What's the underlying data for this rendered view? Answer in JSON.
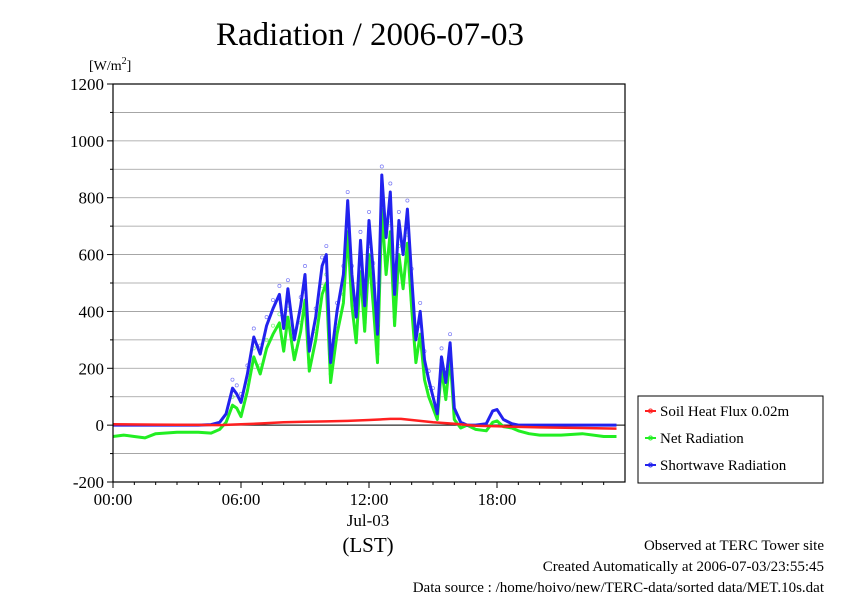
{
  "chart_data": {
    "type": "line",
    "title": "Radiation / 2006-07-03",
    "y_unit_prefix": "[W/m",
    "y_unit_sup": "2",
    "y_unit_suffix": "]",
    "ylim": [
      -200,
      1200
    ],
    "yticks": [
      -200,
      0,
      200,
      400,
      600,
      800,
      1000,
      1200
    ],
    "yticklabels": [
      "-200",
      "0",
      "200",
      "400",
      "600",
      "800",
      "1000",
      "1200"
    ],
    "xlim": [
      0,
      24
    ],
    "xticks": [
      0,
      6,
      12,
      18
    ],
    "xticklabels": [
      "00:00",
      "06:00",
      "12:00",
      "18:00"
    ],
    "x_date_label": "Jul-03",
    "x_axis_label": "(LST)",
    "grid": true,
    "legend_placement": "right",
    "series": [
      {
        "name": "Soil Heat Flux 0.02m",
        "color": "#ff2020",
        "x": [
          0,
          2,
          4,
          5,
          6,
          7,
          8,
          9,
          10,
          11,
          12,
          13,
          13.5,
          14,
          15,
          16,
          17,
          18,
          20,
          22,
          23.6
        ],
        "y": [
          3,
          2,
          1,
          0,
          3,
          6,
          10,
          12,
          13,
          15,
          18,
          22,
          22,
          18,
          10,
          5,
          -2,
          -4,
          -8,
          -10,
          -12
        ]
      },
      {
        "name": "Net Radiation",
        "color": "#22ee22",
        "x": [
          0,
          0.5,
          1,
          1.5,
          2,
          3,
          4,
          4.6,
          5,
          5.3,
          5.6,
          5.8,
          6.0,
          6.3,
          6.6,
          6.9,
          7.2,
          7.5,
          7.8,
          8.0,
          8.2,
          8.5,
          8.8,
          9.0,
          9.2,
          9.5,
          9.8,
          10.0,
          10.2,
          10.5,
          10.8,
          11.0,
          11.2,
          11.4,
          11.6,
          11.8,
          12.0,
          12.2,
          12.4,
          12.6,
          12.8,
          13.0,
          13.2,
          13.4,
          13.6,
          13.8,
          14.0,
          14.2,
          14.4,
          14.6,
          14.8,
          15.0,
          15.2,
          15.4,
          15.6,
          15.8,
          16.0,
          16.3,
          16.6,
          17.0,
          17.5,
          17.8,
          18.0,
          18.3,
          18.7,
          19.0,
          19.5,
          20,
          21,
          22,
          23,
          23.6
        ],
        "y": [
          -40,
          -35,
          -40,
          -45,
          -30,
          -25,
          -25,
          -28,
          -15,
          10,
          70,
          60,
          30,
          120,
          240,
          180,
          270,
          320,
          360,
          260,
          380,
          230,
          330,
          440,
          190,
          300,
          460,
          500,
          150,
          320,
          430,
          680,
          420,
          290,
          540,
          330,
          600,
          420,
          220,
          760,
          530,
          680,
          350,
          600,
          480,
          640,
          410,
          220,
          320,
          160,
          100,
          60,
          20,
          200,
          90,
          240,
          20,
          -10,
          0,
          -15,
          -20,
          10,
          15,
          -5,
          -10,
          -20,
          -30,
          -35,
          -35,
          -30,
          -40,
          -40
        ]
      },
      {
        "name": "Shortwave Radiation",
        "color": "#2222ee",
        "x": [
          0,
          2,
          4,
          4.6,
          5,
          5.3,
          5.6,
          5.8,
          6.0,
          6.3,
          6.6,
          6.9,
          7.2,
          7.5,
          7.8,
          8.0,
          8.2,
          8.5,
          8.8,
          9.0,
          9.2,
          9.5,
          9.8,
          10.0,
          10.2,
          10.5,
          10.8,
          11.0,
          11.2,
          11.4,
          11.6,
          11.8,
          12.0,
          12.2,
          12.4,
          12.6,
          12.8,
          13.0,
          13.2,
          13.4,
          13.6,
          13.8,
          14.0,
          14.2,
          14.4,
          14.6,
          14.8,
          15.0,
          15.2,
          15.4,
          15.6,
          15.8,
          16.0,
          16.3,
          16.6,
          17.0,
          17.5,
          17.8,
          18.0,
          18.3,
          18.7,
          19.0,
          20,
          22,
          23.6
        ],
        "y": [
          0,
          0,
          0,
          2,
          10,
          40,
          130,
          110,
          80,
          180,
          310,
          250,
          350,
          410,
          460,
          340,
          480,
          300,
          420,
          530,
          260,
          380,
          560,
          600,
          220,
          400,
          530,
          790,
          530,
          380,
          650,
          420,
          720,
          540,
          320,
          880,
          660,
          820,
          460,
          720,
          600,
          760,
          520,
          300,
          400,
          230,
          160,
          100,
          40,
          240,
          150,
          290,
          60,
          10,
          0,
          0,
          5,
          50,
          55,
          20,
          5,
          0,
          0,
          0,
          0
        ]
      }
    ]
  },
  "footer": {
    "line1": "Observed at TERC Tower site",
    "line2": "Created Automatically at 2006-07-03/23:55:45",
    "line3": "Data source : /home/hoivo/new/TERC-data/sorted  data/MET.10s.dat"
  }
}
